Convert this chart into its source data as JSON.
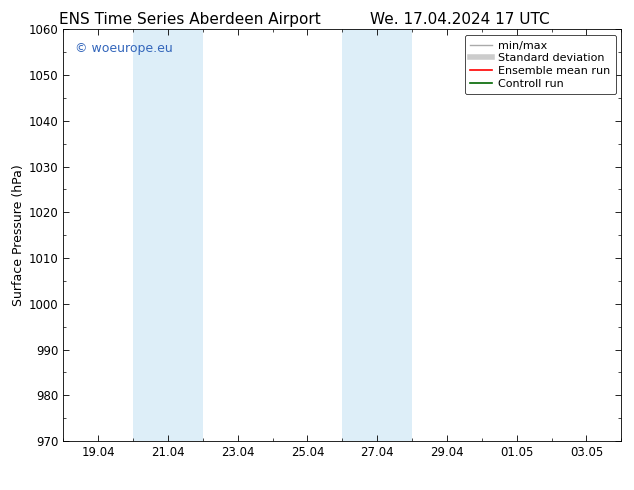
{
  "title_left": "ENS Time Series Aberdeen Airport",
  "title_right": "We. 17.04.2024 17 UTC",
  "ylabel": "Surface Pressure (hPa)",
  "ylim": [
    970,
    1060
  ],
  "yticks": [
    970,
    980,
    990,
    1000,
    1010,
    1020,
    1030,
    1040,
    1050,
    1060
  ],
  "xlim": [
    0,
    16
  ],
  "xtick_labels": [
    "19.04",
    "21.04",
    "23.04",
    "25.04",
    "27.04",
    "29.04",
    "01.05",
    "03.05"
  ],
  "xtick_positions": [
    1,
    3,
    5,
    7,
    9,
    11,
    13,
    15
  ],
  "shaded_bands": [
    {
      "x_start": 2,
      "x_end": 4
    },
    {
      "x_start": 8,
      "x_end": 10
    }
  ],
  "shaded_color": "#ddeef8",
  "background_color": "#ffffff",
  "watermark_text": "© woeurope.eu",
  "watermark_color": "#3366bb",
  "legend_items": [
    {
      "label": "min/max",
      "color": "#aaaaaa",
      "lw": 1.0
    },
    {
      "label": "Standard deviation",
      "color": "#cccccc",
      "lw": 4.0
    },
    {
      "label": "Ensemble mean run",
      "color": "#ff0000",
      "lw": 1.2
    },
    {
      "label": "Controll run",
      "color": "#006600",
      "lw": 1.2
    }
  ],
  "title_fontsize": 11,
  "ylabel_fontsize": 9,
  "tick_fontsize": 8.5,
  "legend_fontsize": 8,
  "watermark_fontsize": 9
}
